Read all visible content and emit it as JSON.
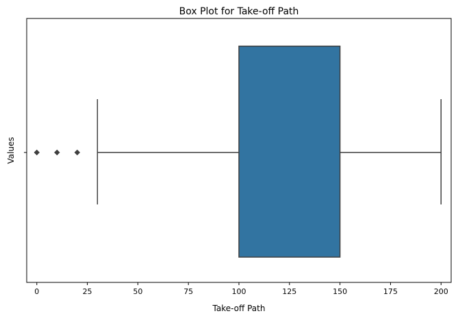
{
  "chart_data": {
    "type": "box",
    "title": "Box Plot for Take-off Path",
    "xlabel": "Take-off Path",
    "ylabel": "Values",
    "xlim": [
      -5,
      205
    ],
    "xticks": [
      0,
      25,
      50,
      75,
      100,
      125,
      150,
      175,
      200
    ],
    "yticks": [
      ""
    ],
    "box": {
      "whisker_low": 30,
      "q1": 100,
      "q3": 150,
      "whisker_high": 200,
      "outliers": [
        0,
        10,
        20
      ],
      "color": "#3274a1",
      "line_color": "#3f3f3f"
    }
  }
}
